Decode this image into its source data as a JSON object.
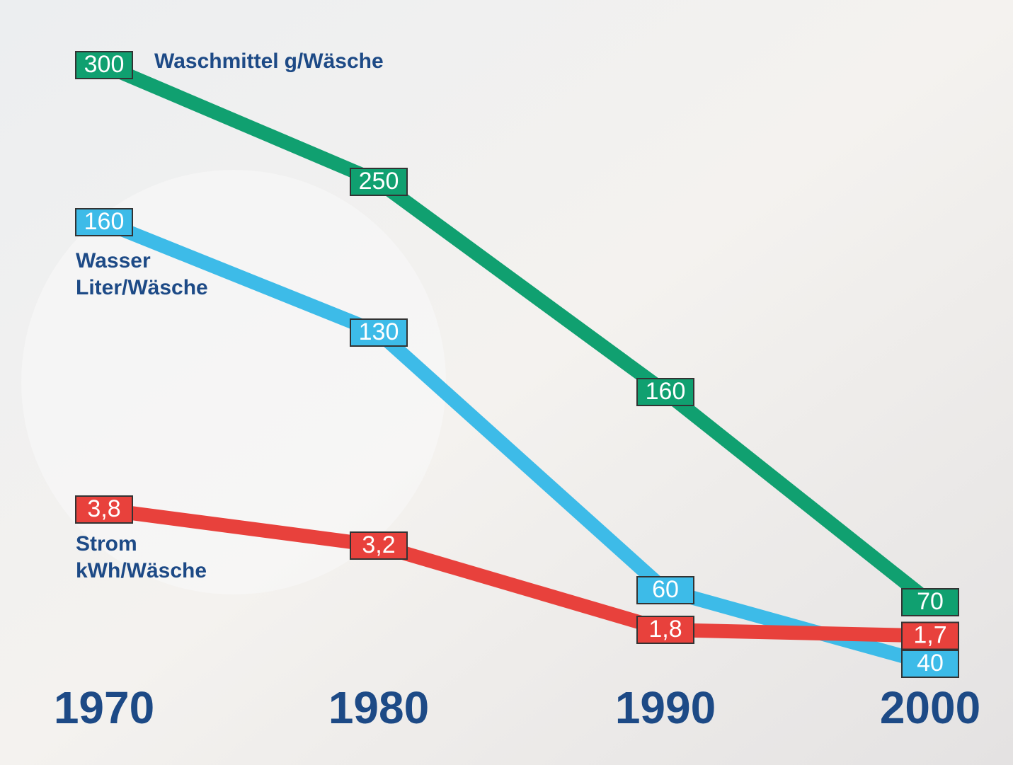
{
  "chart_data": {
    "type": "line",
    "categories": [
      "1970",
      "1980",
      "1990",
      "2000"
    ],
    "series": [
      {
        "name": "Waschmittel",
        "unit": "g/Wäsche",
        "color": "#10a070",
        "values": [
          300,
          250,
          160,
          70
        ]
      },
      {
        "name": "Wasser",
        "unit": "Liter/Wäsche",
        "color": "#3dbbe8",
        "values": [
          160,
          130,
          60,
          40
        ]
      },
      {
        "name": "Strom",
        "unit": "kWh/Wäsche",
        "color": "#e8413c",
        "values": [
          3.8,
          3.2,
          1.8,
          1.7
        ],
        "value_labels": [
          "3,8",
          "3,2",
          "1,8",
          "1,7"
        ]
      }
    ]
  }
}
